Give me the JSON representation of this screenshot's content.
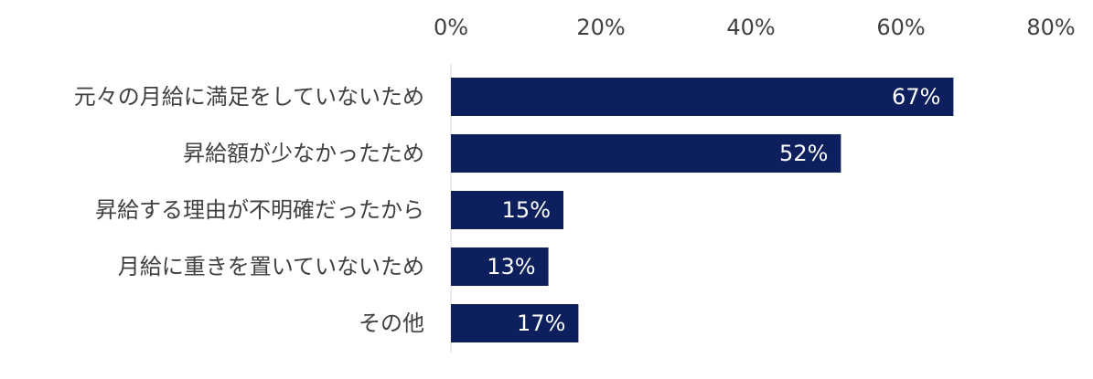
{
  "chart_data": {
    "type": "bar",
    "orientation": "horizontal",
    "title": "",
    "xlabel": "",
    "ylabel": "",
    "xlim": [
      0,
      80
    ],
    "ticks": [
      0,
      20,
      40,
      60,
      80
    ],
    "tick_labels": [
      "0%",
      "20%",
      "40%",
      "60%",
      "80%"
    ],
    "axis_position": "top",
    "grid": false,
    "legend": "none",
    "bar_color": "#0d1f5c",
    "axis_line_color": "#d9d9d9",
    "categories": [
      "元々の月給に満足をしていないため",
      "昇給額が少なかったため",
      "昇給する理由が不明確だったから",
      "月給に重きを置いていないため",
      "その他"
    ],
    "values": [
      67,
      52,
      15,
      13,
      17
    ],
    "value_labels": [
      "67%",
      "52%",
      "15%",
      "13%",
      "17%"
    ]
  }
}
